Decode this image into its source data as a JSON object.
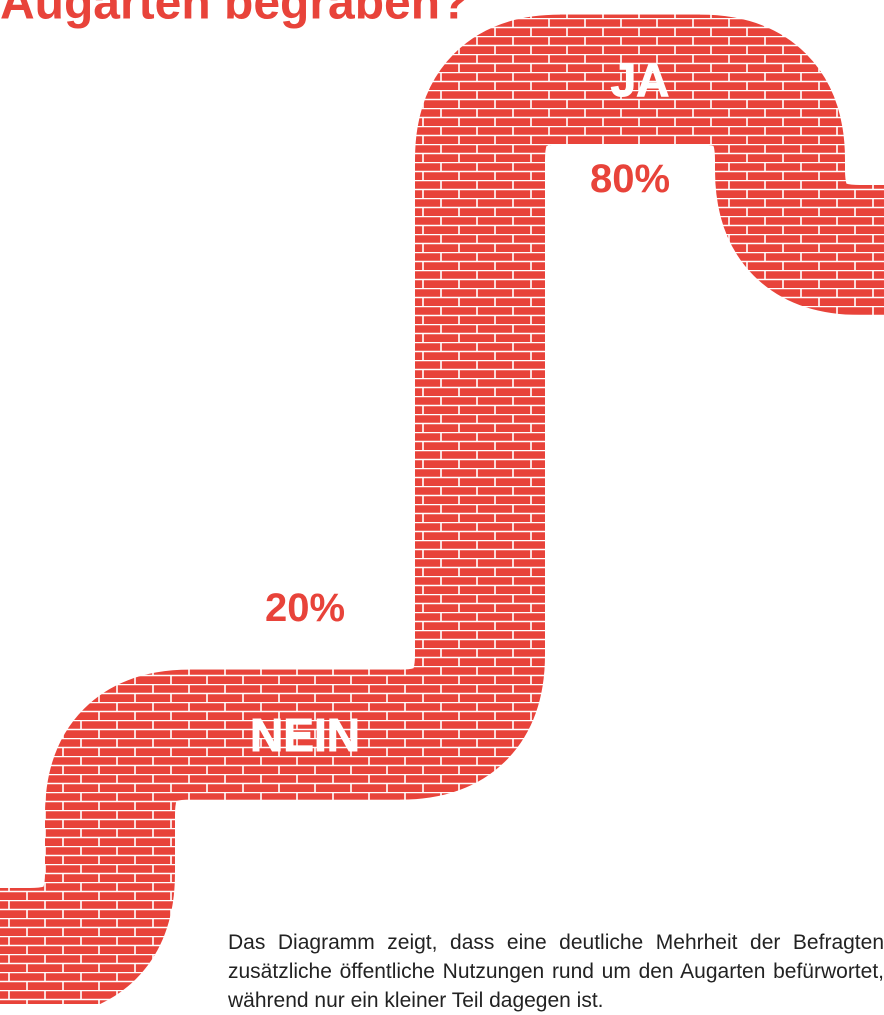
{
  "chart_data": {
    "type": "brick-step",
    "title": "Augarten begraben?",
    "categories": [
      "NEIN",
      "JA"
    ],
    "values": [
      20,
      80
    ],
    "value_labels": [
      "20%",
      "80%"
    ],
    "color": "#e8433a",
    "caption": "Das Diagramm zeigt, dass eine deutliche Mehrheit der Befragten zusätzliche öffentliche Nutzungen rund um den Augarten befürwortet, während nur ein kleiner Teil dagegen ist."
  }
}
